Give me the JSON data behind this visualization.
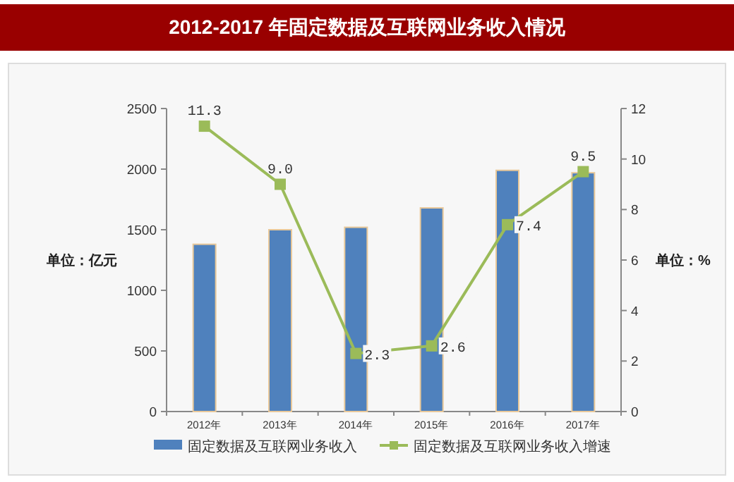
{
  "chart_data": {
    "type": "bar",
    "title": "2012-2017 年固定数据及互联网业务收入情况",
    "categories": [
      "2012年",
      "2013年",
      "2014年",
      "2015年",
      "2016年",
      "2017年"
    ],
    "series": [
      {
        "name": "固定数据及互联网业务收入",
        "color": "#4f81bd",
        "values": [
          1380,
          1500,
          1520,
          1680,
          1990,
          1970
        ]
      },
      {
        "name": "固定数据及互联网业务收入增速",
        "type": "line",
        "axis": "y2",
        "color": "#9bbb59",
        "marker": "square",
        "values": [
          11.3,
          9.0,
          2.3,
          2.6,
          7.4,
          9.5
        ],
        "value_labels": [
          "11.3",
          "9.0",
          "2.3",
          "2.6",
          "7.4",
          "9.5"
        ]
      }
    ],
    "ylabel": "单位：亿元",
    "y2label": "单位：%",
    "ylim": [
      0,
      2500
    ],
    "yticks": [
      0,
      500,
      1000,
      1500,
      2000,
      2500
    ],
    "y2lim": [
      0,
      12
    ],
    "y2ticks": [
      0,
      2,
      4,
      6,
      8,
      10,
      12
    ],
    "legend": "bottom",
    "grid": false
  }
}
